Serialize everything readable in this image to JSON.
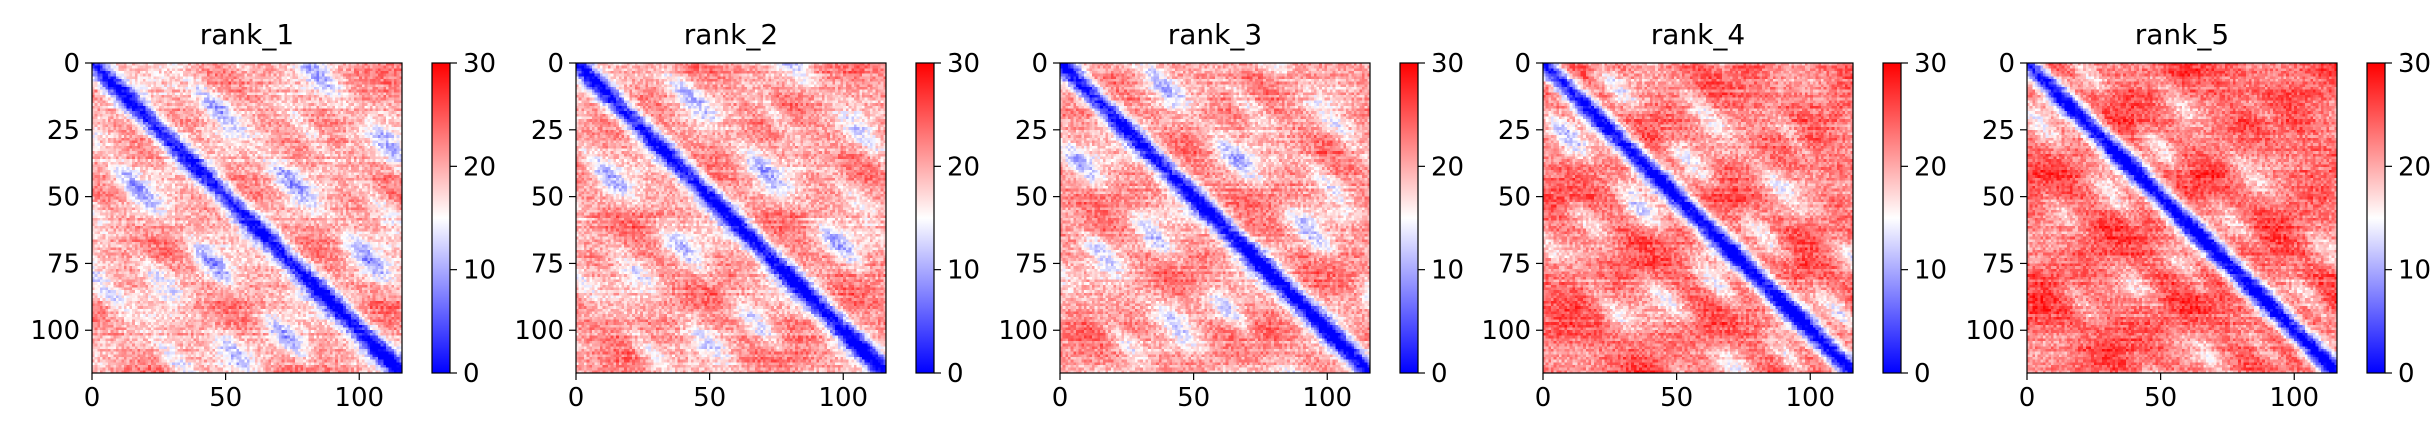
{
  "chart_data": [
    {
      "type": "heatmap",
      "title": "rank_1",
      "size": 116,
      "xticks": [
        0,
        50,
        100
      ],
      "yticks": [
        0,
        25,
        50,
        75,
        100
      ],
      "colorbar": {
        "range": [
          0,
          30
        ],
        "ticks": [
          0,
          10,
          20,
          30
        ],
        "colormap": "bwr",
        "colors": [
          "#0000ff",
          "#ffffff",
          "#ff0000"
        ]
      },
      "pattern": {
        "base": 20,
        "diagonal_width": 4,
        "bands": [
          {
            "offset": 30,
            "depth": 10
          },
          {
            "offset": 55,
            "depth": 7
          },
          {
            "offset": 80,
            "depth": 8
          }
        ],
        "grain": 3
      }
    },
    {
      "type": "heatmap",
      "title": "rank_2",
      "size": 116,
      "xticks": [
        0,
        50,
        100
      ],
      "yticks": [
        0,
        25,
        50,
        75,
        100
      ],
      "colorbar": {
        "range": [
          0,
          30
        ],
        "ticks": [
          0,
          10,
          20,
          30
        ],
        "colormap": "bwr",
        "colors": [
          "#0000ff",
          "#ffffff",
          "#ff0000"
        ]
      },
      "pattern": {
        "base": 21,
        "diagonal_width": 4,
        "bands": [
          {
            "offset": 30,
            "depth": 9
          },
          {
            "offset": 55,
            "depth": 6
          },
          {
            "offset": 80,
            "depth": 7
          }
        ],
        "grain": 3
      }
    },
    {
      "type": "heatmap",
      "title": "rank_3",
      "size": 116,
      "xticks": [
        0,
        50,
        100
      ],
      "yticks": [
        0,
        25,
        50,
        75,
        100
      ],
      "colorbar": {
        "range": [
          0,
          30
        ],
        "ticks": [
          0,
          10,
          20,
          30
        ],
        "colormap": "bwr",
        "colors": [
          "#0000ff",
          "#ffffff",
          "#ff0000"
        ]
      },
      "pattern": {
        "base": 21,
        "diagonal_width": 4,
        "bands": [
          {
            "offset": 30,
            "depth": 9
          },
          {
            "offset": 55,
            "depth": 7
          },
          {
            "offset": 80,
            "depth": 7
          }
        ],
        "grain": 3
      }
    },
    {
      "type": "heatmap",
      "title": "rank_4",
      "size": 116,
      "xticks": [
        0,
        50,
        100
      ],
      "yticks": [
        0,
        25,
        50,
        75,
        100
      ],
      "colorbar": {
        "range": [
          0,
          30
        ],
        "ticks": [
          0,
          10,
          20,
          30
        ],
        "colormap": "bwr",
        "colors": [
          "#0000ff",
          "#ffffff",
          "#ff0000"
        ]
      },
      "pattern": {
        "base": 23,
        "diagonal_width": 4,
        "bands": [
          {
            "offset": 18,
            "depth": 9
          },
          {
            "offset": 42,
            "depth": 7
          },
          {
            "offset": 66,
            "depth": 6
          }
        ],
        "grain": 3
      }
    },
    {
      "type": "heatmap",
      "title": "rank_5",
      "size": 116,
      "xticks": [
        0,
        50,
        100
      ],
      "yticks": [
        0,
        25,
        50,
        75,
        100
      ],
      "colorbar": {
        "range": [
          0,
          30
        ],
        "ticks": [
          0,
          10,
          20,
          30
        ],
        "colormap": "bwr",
        "colors": [
          "#0000ff",
          "#ffffff",
          "#ff0000"
        ]
      },
      "pattern": {
        "base": 24,
        "diagonal_width": 4,
        "bands": [
          {
            "offset": 18,
            "depth": 7
          },
          {
            "offset": 42,
            "depth": 5
          },
          {
            "offset": 70,
            "depth": 5
          }
        ],
        "grain": 3
      }
    }
  ]
}
